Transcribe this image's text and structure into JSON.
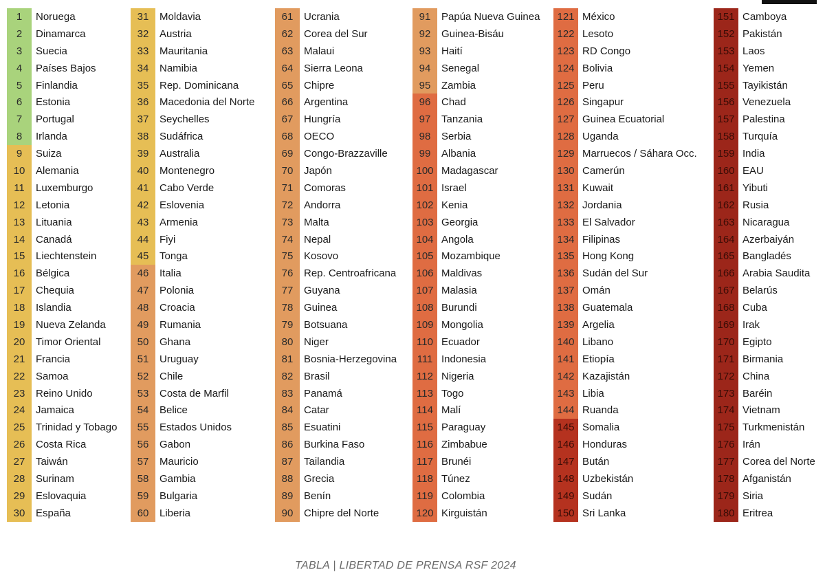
{
  "caption": "TABLA | LIBERTAD DE PRENSA RSF 2024",
  "tiers": [
    {
      "from": 1,
      "to": 8,
      "color": "#a9d37c"
    },
    {
      "from": 9,
      "to": 45,
      "color": "#e6be55"
    },
    {
      "from": 46,
      "to": 95,
      "color": "#e19b5f"
    },
    {
      "from": 96,
      "to": 144,
      "color": "#df6c42"
    },
    {
      "from": 145,
      "to": 150,
      "color": "#b5321f"
    },
    {
      "from": 151,
      "to": 180,
      "color": "#9c261a"
    }
  ],
  "columns": [
    [
      [
        "1",
        "Noruega"
      ],
      [
        "2",
        "Dinamarca"
      ],
      [
        "3",
        "Suecia"
      ],
      [
        "4",
        "Países Bajos"
      ],
      [
        "5",
        "Finlandia"
      ],
      [
        "6",
        "Estonia"
      ],
      [
        "7",
        "Portugal"
      ],
      [
        "8",
        "Irlanda"
      ],
      [
        "9",
        "Suiza"
      ],
      [
        "10",
        "Alemania"
      ],
      [
        "11",
        "Luxemburgo"
      ],
      [
        "12",
        "Letonia"
      ],
      [
        "13",
        "Lituania"
      ],
      [
        "14",
        "Canadá"
      ],
      [
        "15",
        "Liechtenstein"
      ],
      [
        "16",
        "Bélgica"
      ],
      [
        "17",
        "Chequia"
      ],
      [
        "18",
        "Islandia"
      ],
      [
        "19",
        "Nueva Zelanda"
      ],
      [
        "20",
        "Timor Oriental"
      ],
      [
        "21",
        "Francia"
      ],
      [
        "22",
        "Samoa"
      ],
      [
        "23",
        "Reino Unido"
      ],
      [
        "24",
        "Jamaica"
      ],
      [
        "25",
        "Trinidad y Tobago"
      ],
      [
        "26",
        "Costa Rica"
      ],
      [
        "27",
        "Taiwán"
      ],
      [
        "28",
        "Surinam"
      ],
      [
        "29",
        "Eslovaquia"
      ],
      [
        "30",
        "España"
      ]
    ],
    [
      [
        "31",
        "Moldavia"
      ],
      [
        "32",
        "Austria"
      ],
      [
        "33",
        "Mauritania"
      ],
      [
        "34",
        "Namibia"
      ],
      [
        "35",
        "Rep. Dominicana"
      ],
      [
        "36",
        "Macedonia del Norte"
      ],
      [
        "37",
        "Seychelles"
      ],
      [
        "38",
        "Sudáfrica"
      ],
      [
        "39",
        "Australia"
      ],
      [
        "40",
        "Montenegro"
      ],
      [
        "41",
        "Cabo Verde"
      ],
      [
        "42",
        "Eslovenia"
      ],
      [
        "43",
        "Armenia"
      ],
      [
        "44",
        "Fiyi"
      ],
      [
        "45",
        "Tonga"
      ],
      [
        "46",
        "Italia"
      ],
      [
        "47",
        "Polonia"
      ],
      [
        "48",
        "Croacia"
      ],
      [
        "49",
        "Rumania"
      ],
      [
        "50",
        "Ghana"
      ],
      [
        "51",
        "Uruguay"
      ],
      [
        "52",
        "Chile"
      ],
      [
        "53",
        "Costa de Marfil"
      ],
      [
        "54",
        "Belice"
      ],
      [
        "55",
        "Estados Unidos"
      ],
      [
        "56",
        "Gabon"
      ],
      [
        "57",
        "Mauricio"
      ],
      [
        "58",
        "Gambia"
      ],
      [
        "59",
        "Bulgaria"
      ],
      [
        "60",
        "Liberia"
      ]
    ],
    [
      [
        "61",
        "Ucrania"
      ],
      [
        "62",
        "Corea del Sur"
      ],
      [
        "63",
        "Malaui"
      ],
      [
        "64",
        "Sierra Leona"
      ],
      [
        "65",
        "Chipre"
      ],
      [
        "66",
        "Argentina"
      ],
      [
        "67",
        "Hungría"
      ],
      [
        "68",
        "OECO"
      ],
      [
        "69",
        "Congo-Brazzaville"
      ],
      [
        "70",
        "Japón"
      ],
      [
        "71",
        "Comoras"
      ],
      [
        "72",
        "Andorra"
      ],
      [
        "73",
        "Malta"
      ],
      [
        "74",
        "Nepal"
      ],
      [
        "75",
        "Kosovo"
      ],
      [
        "76",
        "Rep. Centroafricana"
      ],
      [
        "77",
        "Guyana"
      ],
      [
        "78",
        "Guinea"
      ],
      [
        "79",
        "Botsuana"
      ],
      [
        "80",
        "Niger"
      ],
      [
        "81",
        "Bosnia-Herzegovina"
      ],
      [
        "82",
        "Brasil"
      ],
      [
        "83",
        "Panamá"
      ],
      [
        "84",
        "Catar"
      ],
      [
        "85",
        "Esuatini"
      ],
      [
        "86",
        "Burkina Faso"
      ],
      [
        "87",
        "Tailandia"
      ],
      [
        "88",
        "Grecia"
      ],
      [
        "89",
        "Benín"
      ],
      [
        "90",
        "Chipre del Norte"
      ]
    ],
    [
      [
        "91",
        "Papúa Nueva Guinea"
      ],
      [
        "92",
        "Guinea-Bisáu"
      ],
      [
        "93",
        "Haití"
      ],
      [
        "94",
        "Senegal"
      ],
      [
        "95",
        "Zambia"
      ],
      [
        "96",
        "Chad"
      ],
      [
        "97",
        "Tanzania"
      ],
      [
        "98",
        "Serbia"
      ],
      [
        "99",
        "Albania"
      ],
      [
        "100",
        "Madagascar"
      ],
      [
        "101",
        "Israel"
      ],
      [
        "102",
        "Kenia"
      ],
      [
        "103",
        "Georgia"
      ],
      [
        "104",
        "Angola"
      ],
      [
        "105",
        "Mozambique"
      ],
      [
        "106",
        "Maldivas"
      ],
      [
        "107",
        "Malasia"
      ],
      [
        "108",
        "Burundi"
      ],
      [
        "109",
        "Mongolia"
      ],
      [
        "110",
        "Ecuador"
      ],
      [
        "111",
        "Indonesia"
      ],
      [
        "112",
        "Nigeria"
      ],
      [
        "113",
        "Togo"
      ],
      [
        "114",
        "Malí"
      ],
      [
        "115",
        "Paraguay"
      ],
      [
        "116",
        "Zimbabue"
      ],
      [
        "117",
        "Brunéi"
      ],
      [
        "118",
        "Túnez"
      ],
      [
        "119",
        "Colombia"
      ],
      [
        "120",
        "Kirguistán"
      ]
    ],
    [
      [
        "121",
        "México"
      ],
      [
        "122",
        "Lesoto"
      ],
      [
        "123",
        "RD Congo"
      ],
      [
        "124",
        "Bolivia"
      ],
      [
        "125",
        "Peru"
      ],
      [
        "126",
        "Singapur"
      ],
      [
        "127",
        "Guinea Ecuatorial"
      ],
      [
        "128",
        "Uganda"
      ],
      [
        "129",
        "Marruecos / Sáhara Occ."
      ],
      [
        "130",
        "Camerún"
      ],
      [
        "131",
        "Kuwait"
      ],
      [
        "132",
        "Jordania"
      ],
      [
        "133",
        "El Salvador"
      ],
      [
        "134",
        "Filipinas"
      ],
      [
        "135",
        "Hong Kong"
      ],
      [
        "136",
        "Sudán del Sur"
      ],
      [
        "137",
        "Omán"
      ],
      [
        "138",
        "Guatemala"
      ],
      [
        "139",
        "Argelia"
      ],
      [
        "140",
        "Libano"
      ],
      [
        "141",
        "Etiopía"
      ],
      [
        "142",
        "Kazajistán"
      ],
      [
        "143",
        "Libia"
      ],
      [
        "144",
        "Ruanda"
      ],
      [
        "145",
        "Somalia"
      ],
      [
        "146",
        "Honduras"
      ],
      [
        "147",
        "Bután"
      ],
      [
        "148",
        "Uzbekistán"
      ],
      [
        "149",
        "Sudán"
      ],
      [
        "150",
        "Sri Lanka"
      ]
    ],
    [
      [
        "151",
        "Camboya"
      ],
      [
        "152",
        "Pakistán"
      ],
      [
        "153",
        "Laos"
      ],
      [
        "154",
        "Yemen"
      ],
      [
        "155",
        "Tayikistán"
      ],
      [
        "156",
        "Venezuela"
      ],
      [
        "157",
        "Palestina"
      ],
      [
        "158",
        "Turquía"
      ],
      [
        "159",
        "India"
      ],
      [
        "160",
        "EAU"
      ],
      [
        "161",
        "Yibuti"
      ],
      [
        "162",
        "Rusia"
      ],
      [
        "163",
        "Nicaragua"
      ],
      [
        "164",
        "Azerbaiyán"
      ],
      [
        "165",
        "Bangladés"
      ],
      [
        "166",
        "Arabia Saudita"
      ],
      [
        "167",
        "Belarús"
      ],
      [
        "168",
        "Cuba"
      ],
      [
        "169",
        "Irak"
      ],
      [
        "170",
        "Egipto"
      ],
      [
        "171",
        "Birmania"
      ],
      [
        "172",
        "China"
      ],
      [
        "173",
        "Baréin"
      ],
      [
        "174",
        "Vietnam"
      ],
      [
        "175",
        "Turkmenistán"
      ],
      [
        "176",
        "Irán"
      ],
      [
        "177",
        "Corea del Norte"
      ],
      [
        "178",
        "Afganistán"
      ],
      [
        "179",
        "Siria"
      ],
      [
        "180",
        "Eritrea"
      ]
    ]
  ]
}
